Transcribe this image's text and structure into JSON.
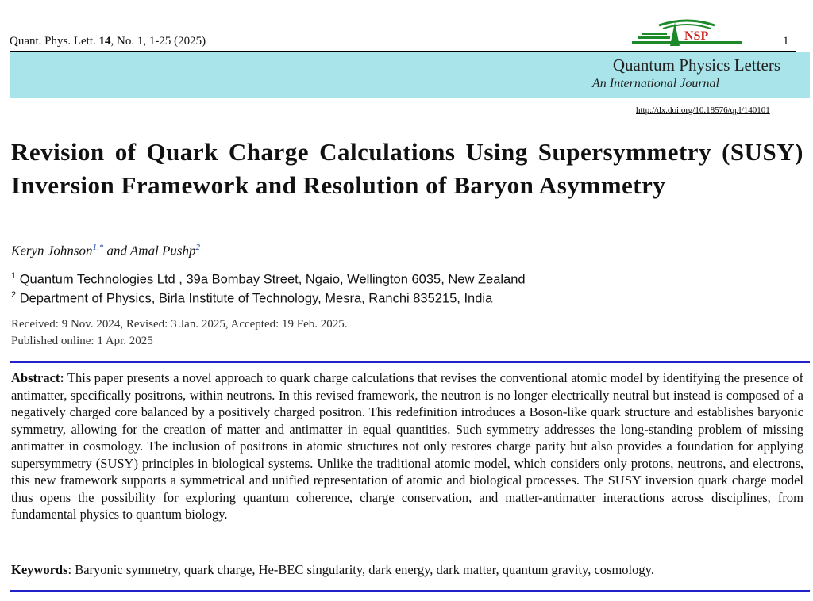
{
  "header": {
    "citation_prefix": "Quant. Phys. Lett. ",
    "citation_volume": "14",
    "citation_suffix": ", No. 1, 1-25 (2025)",
    "page_number": "1",
    "logo_text": "NSP",
    "journal_name": "Quantum Physics Letters",
    "journal_subtitle": "An International Journal",
    "doi": "http://dx.doi.org/10.18576/qpl/140101"
  },
  "article": {
    "title": "Revision of Quark Charge Calculations Using Supersymmetry (SUSY) Inversion Framework and Resolution of Baryon Asymmetry",
    "author1": "Keryn Johnson",
    "author1_sup": "1,*",
    "author_join": " and Amal Pushp",
    "author2_sup": "2",
    "affiliations": [
      {
        "sup": "1",
        "text": "Quantum Technologies Ltd , 39a Bombay Street, Ngaio, Wellington 6035, New Zealand"
      },
      {
        "sup": "2",
        "text": "Department of Physics, Birla Institute of Technology, Mesra, Ranchi 835215, India"
      }
    ],
    "received": "Received: 9 Nov. 2024, Revised: 3 Jan. 2025, Accepted: 19 Feb. 2025.",
    "published": "Published online: 1 Apr. 2025",
    "abstract_label": "Abstract:",
    "abstract_text": " This paper presents a novel approach to quark charge calculations that revises the conventional atomic model by identifying the presence of antimatter, specifically positrons, within neutrons. In this revised framework, the neutron is no longer electrically neutral but instead is composed of a negatively charged core balanced by a positively charged positron. This redefinition introduces a Boson-like quark structure and establishes baryonic symmetry, allowing for the creation of matter and antimatter in equal quantities. Such symmetry addresses the long-standing problem of missing antimatter in cosmology. The inclusion of positrons in atomic structures not only restores charge parity but also provides a foundation for applying supersymmetry (SUSY) principles in biological systems. Unlike the traditional atomic model, which considers only protons, neutrons, and electrons, this new framework supports a symmetrical and unified representation of atomic and biological processes. The SUSY inversion quark charge model thus opens the possibility for exploring quantum coherence, charge conservation, and matter-antimatter interactions across disciplines, from fundamental physics to quantum biology.",
    "keywords_label": "Keywords",
    "keywords_text": ": Baryonic symmetry, quark charge, He-BEC singularity, dark energy, dark matter, quantum gravity, cosmology."
  },
  "colors": {
    "banner": "#a8e4e9",
    "rule_blue": "#2222c8",
    "logo_green": "#1d8a2a",
    "logo_red": "#cc2222"
  }
}
